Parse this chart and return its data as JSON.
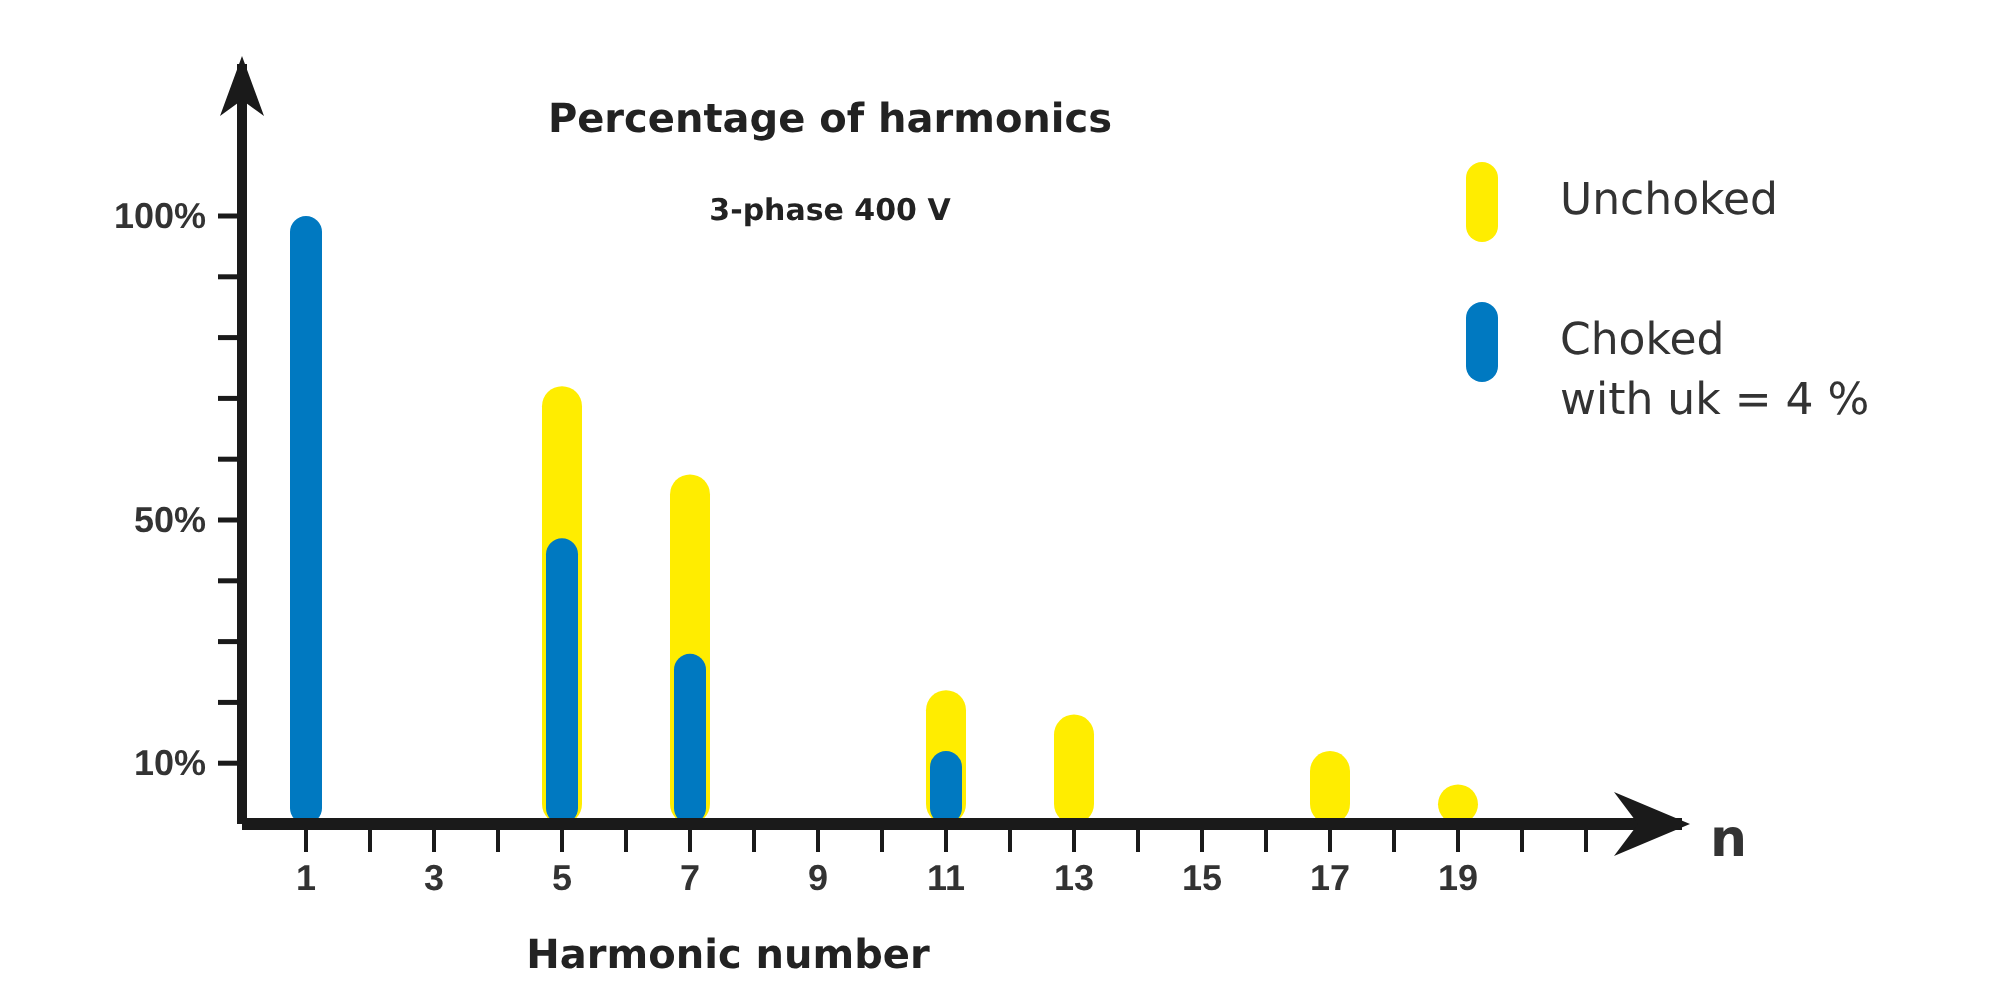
{
  "chart_data": {
    "type": "bar",
    "title": "Percentage of harmonics",
    "subtitle": "3-phase 400 V",
    "xlabel": "Harmonic number",
    "annotations": [
      "n"
    ],
    "x": [
      1,
      5,
      7,
      11,
      13,
      17,
      19
    ],
    "series": [
      {
        "name": "Unchoked",
        "color": "#ffed00",
        "values": [
          null,
          72,
          57.5,
          22,
          18,
          12,
          6.5
        ]
      },
      {
        "name": "Choked\nwith uk = 4 %",
        "color": "#0079c1",
        "values": [
          100,
          47,
          28,
          12,
          null,
          null,
          null
        ]
      }
    ],
    "xlim": [
      0,
      22.5
    ],
    "xticks": [
      1,
      {
        "value": 2,
        "label": null
      },
      3,
      {
        "value": 4,
        "label": null
      },
      5,
      {
        "value": 6,
        "label": null
      },
      7,
      {
        "value": 8,
        "label": null
      },
      9,
      {
        "value": 10,
        "label": null
      },
      11,
      {
        "value": 12,
        "label": null
      },
      13,
      {
        "value": 14,
        "label": null
      },
      15,
      {
        "value": 16,
        "label": null
      },
      17,
      {
        "value": 18,
        "label": null
      },
      19,
      {
        "value": 20,
        "label": null
      },
      {
        "value": 21,
        "label": null
      }
    ],
    "ylim": [
      0,
      125
    ],
    "yticks": [
      {
        "value": 10,
        "label": "10%"
      },
      {
        "value": 20,
        "label": null
      },
      {
        "value": 30,
        "label": null
      },
      {
        "value": 40,
        "label": null
      },
      {
        "value": 50,
        "label": "50%"
      },
      {
        "value": 60,
        "label": null
      },
      {
        "value": 70,
        "label": null
      },
      {
        "value": 80,
        "label": null
      },
      {
        "value": 90,
        "label": null
      },
      {
        "value": 100,
        "label": "100%"
      }
    ],
    "legend": "top right",
    "grid": false
  }
}
